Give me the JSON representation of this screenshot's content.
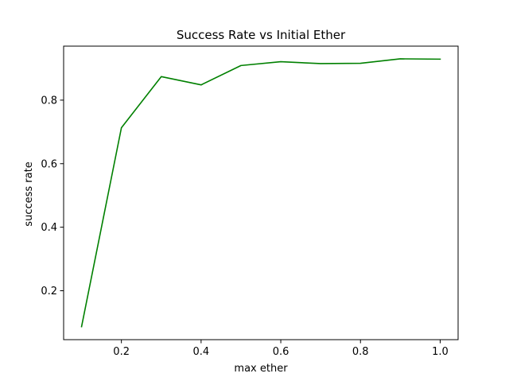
{
  "chart_data": {
    "type": "line",
    "title": "Success Rate vs Initial Ether",
    "xlabel": "max ether",
    "ylabel": "success rate",
    "xlim": [
      0.055,
      1.045
    ],
    "ylim": [
      0.046,
      0.97
    ],
    "x_ticks": [
      0.2,
      0.4,
      0.6,
      0.8,
      1.0
    ],
    "x_tick_labels": [
      "0.2",
      "0.4",
      "0.6",
      "0.8",
      "1.0"
    ],
    "y_ticks": [
      0.2,
      0.4,
      0.6,
      0.8
    ],
    "y_tick_labels": [
      "0.2",
      "0.4",
      "0.6",
      "0.8"
    ],
    "grid": false,
    "series": [
      {
        "color": "#008000",
        "x": [
          0.1,
          0.2,
          0.3,
          0.4,
          0.5,
          0.6,
          0.7,
          0.8,
          0.9,
          1.0
        ],
        "y": [
          0.087,
          0.713,
          0.874,
          0.848,
          0.909,
          0.921,
          0.915,
          0.916,
          0.93,
          0.929
        ]
      }
    ]
  }
}
